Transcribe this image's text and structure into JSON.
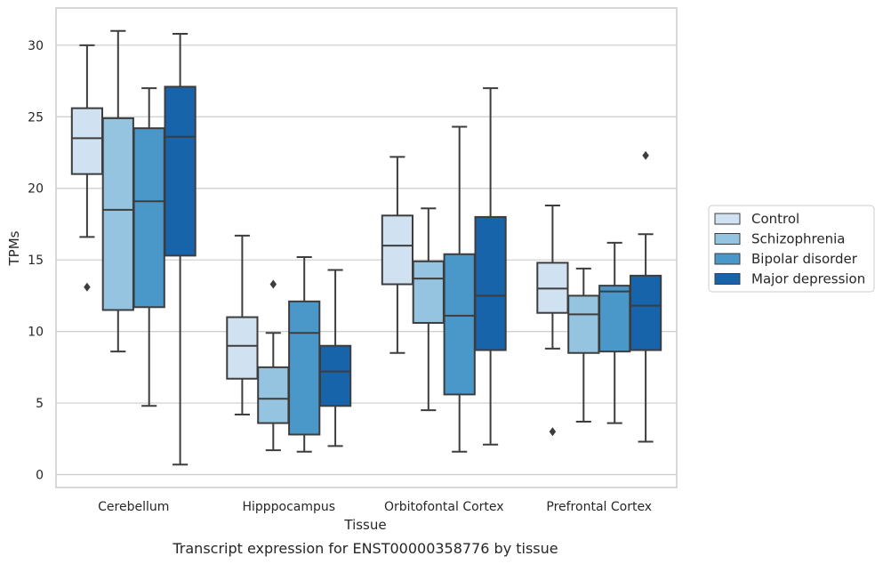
{
  "chart_data": {
    "type": "box",
    "xlabel": "Tissue",
    "ylabel": "TPMs",
    "caption": "Transcript expression for ENST00000358776 by tissue",
    "ylim": [
      -0.9,
      32.6
    ],
    "yticks": [
      0,
      5,
      10,
      15,
      20,
      25,
      30
    ],
    "grid": true,
    "legend_position": "right-outside",
    "categories": [
      "Cerebellum",
      "Hipppocampus",
      "Orbitofontal Cortex",
      "Prefrontal Cortex"
    ],
    "series": [
      {
        "name": "Control",
        "color": "#d0e1f2",
        "boxes": [
          {
            "whislo": 16.6,
            "q1": 21.0,
            "med": 23.5,
            "q3": 25.6,
            "whishi": 30.0,
            "fliers": [
              13.1
            ]
          },
          {
            "whislo": 4.2,
            "q1": 6.7,
            "med": 9.0,
            "q3": 11.0,
            "whishi": 16.7,
            "fliers": []
          },
          {
            "whislo": 8.5,
            "q1": 13.3,
            "med": 16.0,
            "q3": 18.1,
            "whishi": 22.2,
            "fliers": []
          },
          {
            "whislo": 8.8,
            "q1": 11.3,
            "med": 13.0,
            "q3": 14.8,
            "whishi": 18.8,
            "fliers": [
              3.0
            ]
          }
        ]
      },
      {
        "name": "Schizophrenia",
        "color": "#94c4df",
        "boxes": [
          {
            "whislo": 8.6,
            "q1": 11.5,
            "med": 18.5,
            "q3": 24.9,
            "whishi": 31.0,
            "fliers": []
          },
          {
            "whislo": 1.7,
            "q1": 3.6,
            "med": 5.3,
            "q3": 7.5,
            "whishi": 9.9,
            "fliers": [
              13.3
            ]
          },
          {
            "whislo": 4.5,
            "q1": 10.6,
            "med": 13.7,
            "q3": 14.9,
            "whishi": 18.6,
            "fliers": []
          },
          {
            "whislo": 3.7,
            "q1": 8.5,
            "med": 11.2,
            "q3": 12.5,
            "whishi": 14.4,
            "fliers": []
          }
        ]
      },
      {
        "name": "Bipolar disorder",
        "color": "#4a98c9",
        "boxes": [
          {
            "whislo": 4.8,
            "q1": 11.7,
            "med": 19.1,
            "q3": 24.2,
            "whishi": 27.0,
            "fliers": []
          },
          {
            "whislo": 1.6,
            "q1": 2.8,
            "med": 9.9,
            "q3": 12.1,
            "whishi": 15.2,
            "fliers": []
          },
          {
            "whislo": 1.6,
            "q1": 5.6,
            "med": 11.1,
            "q3": 15.4,
            "whishi": 24.3,
            "fliers": []
          },
          {
            "whislo": 3.6,
            "q1": 8.6,
            "med": 12.8,
            "q3": 13.2,
            "whishi": 16.2,
            "fliers": []
          }
        ]
      },
      {
        "name": "Major depression",
        "color": "#1764ab",
        "boxes": [
          {
            "whislo": 0.7,
            "q1": 15.3,
            "med": 23.6,
            "q3": 27.1,
            "whishi": 30.8,
            "fliers": []
          },
          {
            "whislo": 2.0,
            "q1": 4.8,
            "med": 7.2,
            "q3": 9.0,
            "whishi": 14.3,
            "fliers": []
          },
          {
            "whislo": 2.1,
            "q1": 8.7,
            "med": 12.5,
            "q3": 18.0,
            "whishi": 27.0,
            "fliers": []
          },
          {
            "whislo": 2.3,
            "q1": 8.7,
            "med": 11.8,
            "q3": 13.9,
            "whishi": 16.8,
            "fliers": [
              22.3
            ]
          }
        ]
      }
    ]
  }
}
